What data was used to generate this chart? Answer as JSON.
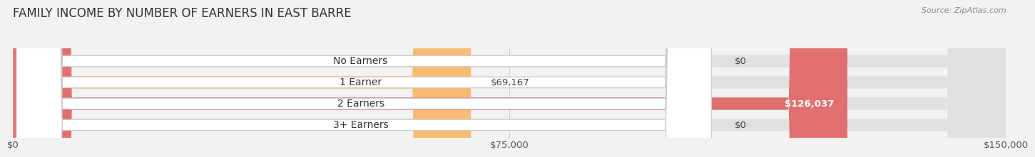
{
  "title": "FAMILY INCOME BY NUMBER OF EARNERS IN EAST BARRE",
  "source": "Source: ZipAtlas.com",
  "categories": [
    "No Earners",
    "1 Earner",
    "2 Earners",
    "3+ Earners"
  ],
  "values": [
    0,
    69167,
    126037,
    0
  ],
  "bar_colors": [
    "#f48fb1",
    "#f9bc74",
    "#e07070",
    "#aec6e8"
  ],
  "value_labels": [
    "$0",
    "$69,167",
    "$126,037",
    "$0"
  ],
  "xlim": [
    0,
    150000
  ],
  "xticks": [
    0,
    75000,
    150000
  ],
  "xtick_labels": [
    "$0",
    "$75,000",
    "$150,000"
  ],
  "background_color": "#f2f2f2",
  "bar_bg_color": "#e0e0e0",
  "title_fontsize": 12,
  "tick_fontsize": 9.5,
  "label_fontsize": 10,
  "value_fontsize": 9.5,
  "bar_height": 0.58
}
